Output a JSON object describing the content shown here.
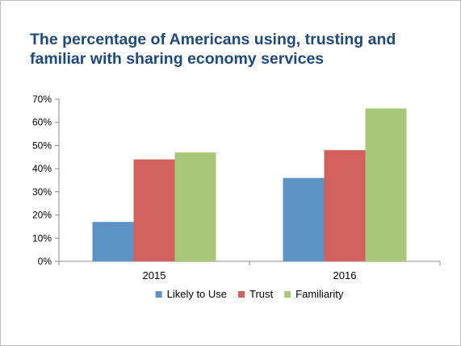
{
  "chart_data": {
    "type": "bar",
    "title": "The percentage of Americans using, trusting and familiar with sharing economy services",
    "title_lines": [
      "The percentage of Americans using, trusting and",
      "familiar with sharing economy services"
    ],
    "categories": [
      "2015",
      "2016"
    ],
    "series": [
      {
        "name": "Likely to Use",
        "values": [
          17,
          36
        ],
        "color": "#5b93c7"
      },
      {
        "name": "Trust",
        "values": [
          44,
          48
        ],
        "color": "#d2605c"
      },
      {
        "name": "Familiarity",
        "values": [
          47,
          66
        ],
        "color": "#a7c878"
      }
    ],
    "y_ticks": [
      "0%",
      "10%",
      "20%",
      "30%",
      "40%",
      "50%",
      "60%",
      "70%"
    ],
    "y_tick_values": [
      0,
      10,
      20,
      30,
      40,
      50,
      60,
      70
    ],
    "ylim": [
      0,
      70
    ],
    "xlabel": "",
    "ylabel": "",
    "grid": false,
    "legend": "bottom",
    "colors": {
      "title": "#1f497d",
      "axis": "#8c8c8c",
      "text": "#000000"
    }
  }
}
